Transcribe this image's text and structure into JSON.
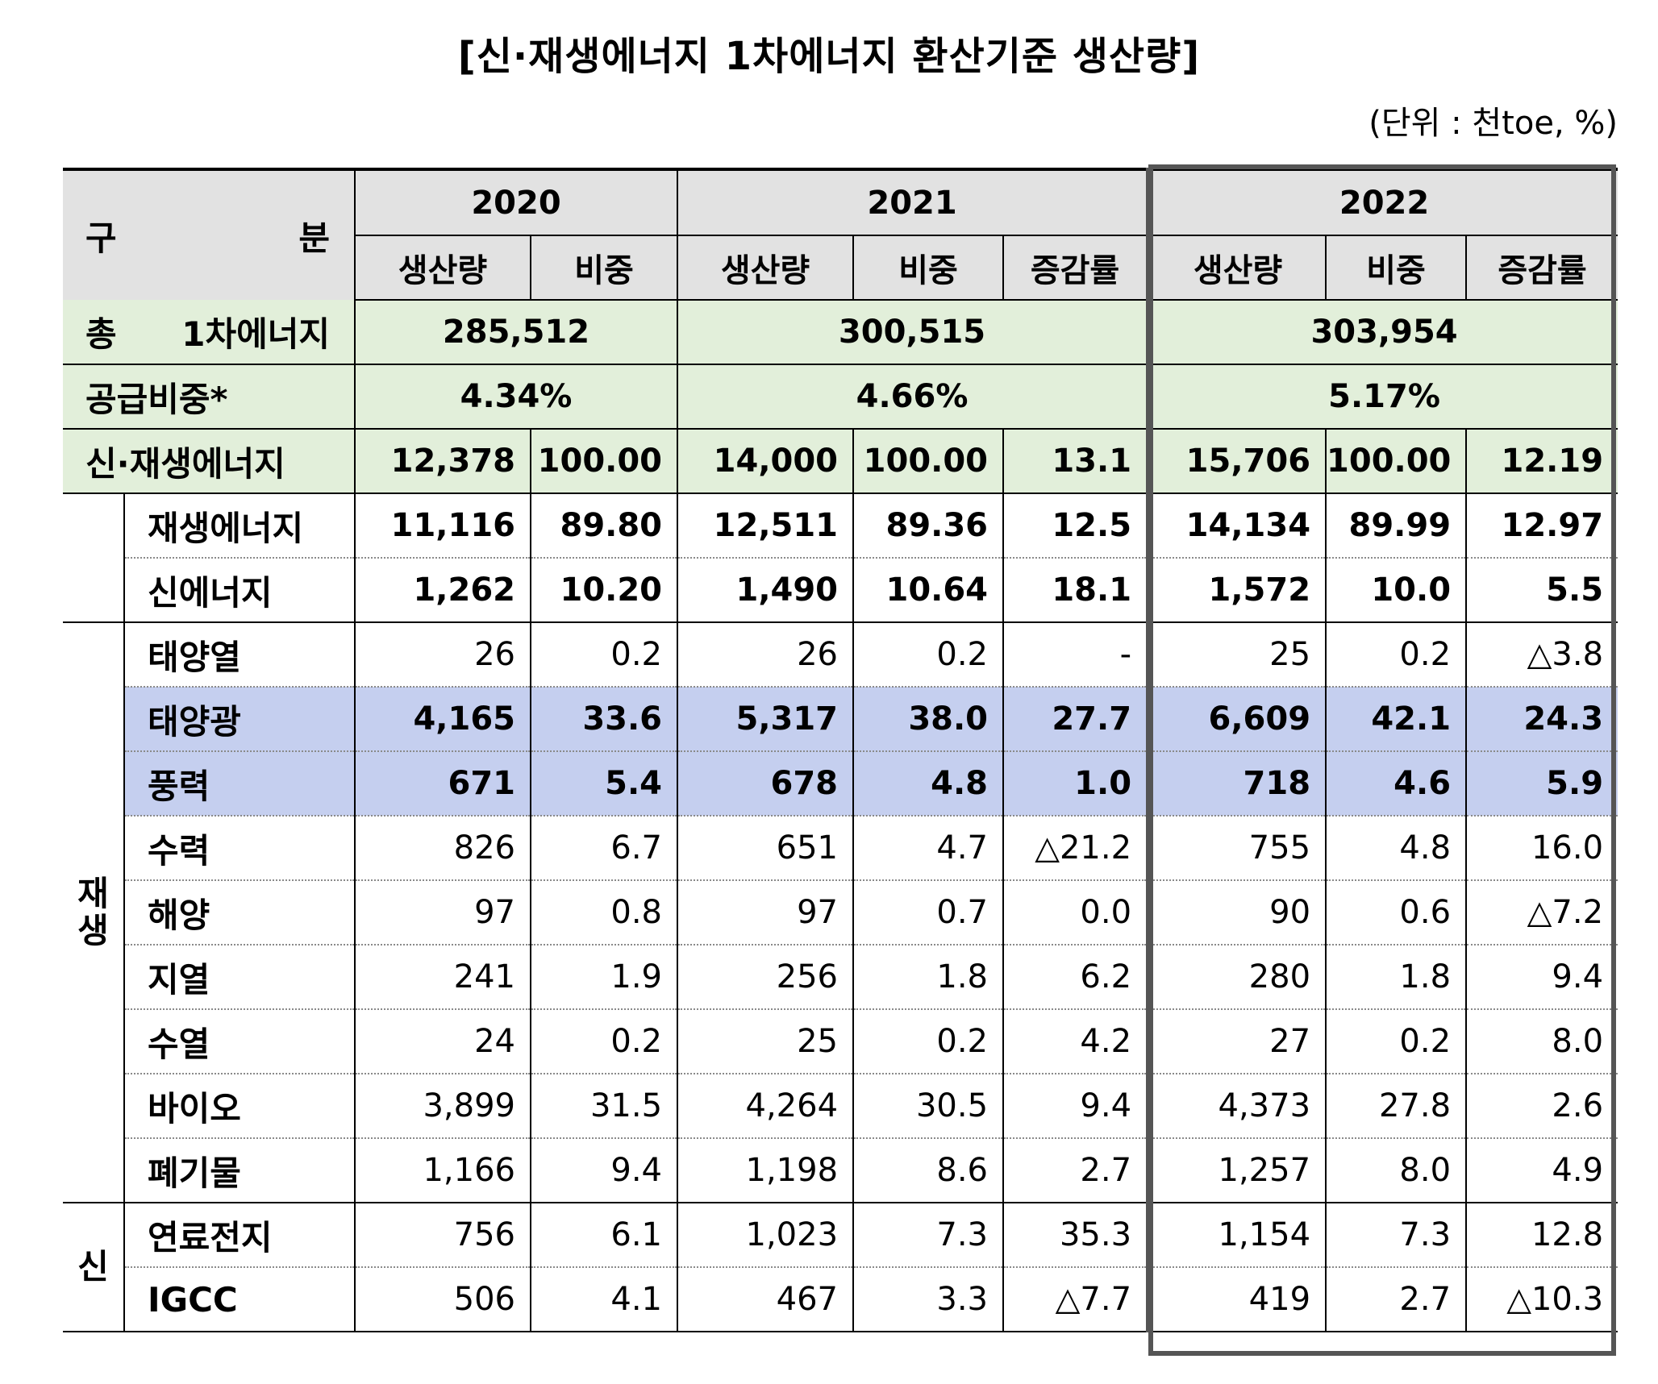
{
  "title": "[신·재생에너지 1차에너지 환산기준 생산량]",
  "unit": "(단위 : 천toe, %)",
  "header": {
    "category": "구 분",
    "years": [
      "2020",
      "2021",
      "2022"
    ],
    "cols_2020": [
      "생산량",
      "비중"
    ],
    "cols_2021": [
      "생산량",
      "비중",
      "증감률"
    ],
    "cols_2022": [
      "생산량",
      "비중",
      "증감률"
    ]
  },
  "summary": {
    "total": {
      "label": "총 1차에너지",
      "v2020": "285,512",
      "v2021": "300,515",
      "v2022": "303,954"
    },
    "share": {
      "label": "공급비중*",
      "v2020": "4.34%",
      "v2021": "4.66%",
      "v2022": "5.17%"
    }
  },
  "groups": {
    "renewable": "재생",
    "new": "신"
  },
  "rows": [
    {
      "label": "신·재생에너지",
      "v": [
        "12,378",
        "100.00",
        "14,000",
        "100.00",
        "13.1",
        "15,706",
        "100.00",
        "12.19"
      ]
    },
    {
      "label": "재생에너지",
      "v": [
        "11,116",
        "89.80",
        "12,511",
        "89.36",
        "12.5",
        "14,134",
        "89.99",
        "12.97"
      ]
    },
    {
      "label": "신에너지",
      "v": [
        "1,262",
        "10.20",
        "1,490",
        "10.64",
        "18.1",
        "1,572",
        "10.0",
        "5.5"
      ]
    },
    {
      "label": "태양열",
      "v": [
        "26",
        "0.2",
        "26",
        "0.2",
        "-",
        "25",
        "0.2",
        "△3.8"
      ]
    },
    {
      "label": "태양광",
      "v": [
        "4,165",
        "33.6",
        "5,317",
        "38.0",
        "27.7",
        "6,609",
        "42.1",
        "24.3"
      ]
    },
    {
      "label": "풍력",
      "v": [
        "671",
        "5.4",
        "678",
        "4.8",
        "1.0",
        "718",
        "4.6",
        "5.9"
      ]
    },
    {
      "label": "수력",
      "v": [
        "826",
        "6.7",
        "651",
        "4.7",
        "△21.2",
        "755",
        "4.8",
        "16.0"
      ]
    },
    {
      "label": "해양",
      "v": [
        "97",
        "0.8",
        "97",
        "0.7",
        "0.0",
        "90",
        "0.6",
        "△7.2"
      ]
    },
    {
      "label": "지열",
      "v": [
        "241",
        "1.9",
        "256",
        "1.8",
        "6.2",
        "280",
        "1.8",
        "9.4"
      ]
    },
    {
      "label": "수열",
      "v": [
        "24",
        "0.2",
        "25",
        "0.2",
        "4.2",
        "27",
        "0.2",
        "8.0"
      ]
    },
    {
      "label": "바이오",
      "v": [
        "3,899",
        "31.5",
        "4,264",
        "30.5",
        "9.4",
        "4,373",
        "27.8",
        "2.6"
      ]
    },
    {
      "label": "폐기물",
      "v": [
        "1,166",
        "9.4",
        "1,198",
        "8.6",
        "2.7",
        "1,257",
        "8.0",
        "4.9"
      ]
    },
    {
      "label": "연료전지",
      "v": [
        "756",
        "6.1",
        "1,023",
        "7.3",
        "35.3",
        "1,154",
        "7.3",
        "12.8"
      ]
    },
    {
      "label": "IGCC",
      "v": [
        "506",
        "4.1",
        "467",
        "3.3",
        "△7.7",
        "419",
        "2.7",
        "△10.3"
      ]
    }
  ]
}
